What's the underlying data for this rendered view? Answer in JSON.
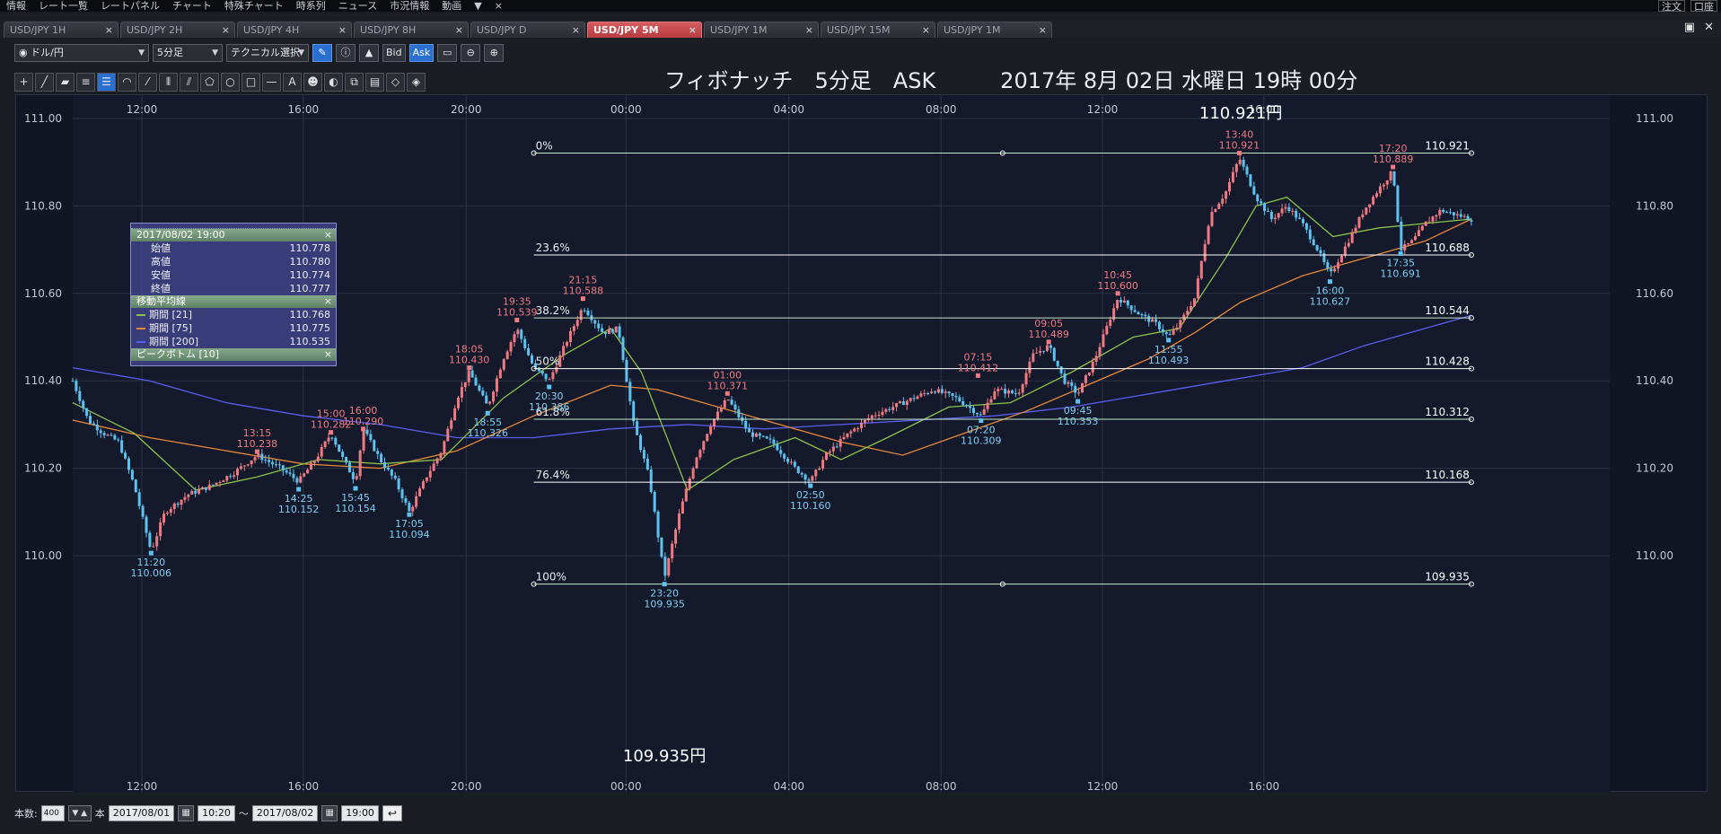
{
  "menu": [
    "情報",
    "レート一覧",
    "レートパネル",
    "チャート",
    "特殊チャート",
    "時系列",
    "ニュース",
    "市況情報",
    "動画",
    "▼",
    "×"
  ],
  "menu_right": [
    "注文",
    "口座"
  ],
  "tabs": [
    {
      "label": "USD/JPY 1H",
      "active": false
    },
    {
      "label": "USD/JPY 2H",
      "active": false
    },
    {
      "label": "USD/JPY 4H",
      "active": false
    },
    {
      "label": "USD/JPY 8H",
      "active": false
    },
    {
      "label": "USD/JPY D",
      "active": false
    },
    {
      "label": "USD/JPY 5M",
      "active": true
    },
    {
      "label": "USD/JPY 1M",
      "active": false
    },
    {
      "label": "USD/JPY 15M",
      "active": false
    },
    {
      "label": "USD/JPY 1M",
      "active": false
    }
  ],
  "toolbar": {
    "pair": "ドル/円",
    "timeframe": "5分足",
    "technical": "テクニカル選択",
    "bid": "Bid",
    "ask": "Ask"
  },
  "chart_title": "フィボナッチ　5分足　ASK　　　2017年 8月 02日 水曜日 19時 00分",
  "info_panel": {
    "date": "2017/08/02 19:00",
    "ohlc": [
      {
        "label": "始値",
        "value": "110.778"
      },
      {
        "label": "高値",
        "value": "110.780"
      },
      {
        "label": "安値",
        "value": "110.774"
      },
      {
        "label": "終値",
        "value": "110.777"
      }
    ],
    "ma_header": "移動平均線",
    "ma": [
      {
        "label": "期間 [21]",
        "value": "110.768",
        "color": "#8bc34a"
      },
      {
        "label": "期間 [75]",
        "value": "110.775",
        "color": "#e8883a"
      },
      {
        "label": "期間 [200]",
        "value": "110.535",
        "color": "#5a5ef0"
      }
    ],
    "peak_header": "ピークボトム [10]",
    "close": "×"
  },
  "bottom": {
    "count_label": "本数:",
    "count_value": "400",
    "unit": "本",
    "from_date": "2017/08/01",
    "from_time": "10:20",
    "tilde": "〜",
    "to_date": "2017/08/02",
    "to_time": "19:00"
  },
  "chart_data": {
    "type": "candlestick",
    "x_ticks": [
      "12:00",
      "16:00",
      "20:00",
      "00:00",
      "04:00",
      "08:00",
      "12:00",
      "16:00"
    ],
    "y_ticks": [
      "111.00",
      "110.80",
      "110.60",
      "110.40",
      "110.20",
      "110.00"
    ],
    "ylim": [
      109.84,
      111.07
    ],
    "fib_levels": [
      {
        "label": "0%",
        "value": 110.921
      },
      {
        "label": "23.6%",
        "value": 110.688
      },
      {
        "label": "38.2%",
        "value": 110.544
      },
      {
        "label": "50%",
        "value": 110.428
      },
      {
        "label": "61.8%",
        "value": 110.312
      },
      {
        "label": "76.4%",
        "value": 110.168
      },
      {
        "label": "100%",
        "value": 109.935
      }
    ],
    "fib_value_labels": [
      "110.921",
      "110.688",
      "110.544",
      "110.428",
      "110.312",
      "110.168",
      "109.935"
    ],
    "high_label": "110.921円",
    "low_label": "109.935円",
    "peaks": [
      {
        "time": "13:15",
        "price": "110.238",
        "x": 0.12,
        "v": 110.238
      },
      {
        "time": "15:00",
        "price": "110.282",
        "x": 0.168,
        "v": 110.282
      },
      {
        "time": "16:00",
        "price": "110.290",
        "x": 0.189,
        "v": 110.29
      },
      {
        "time": "18:05",
        "price": "110.430",
        "x": 0.258,
        "v": 110.43
      },
      {
        "time": "19:35",
        "price": "110.539",
        "x": 0.289,
        "v": 110.539
      },
      {
        "time": "21:15",
        "price": "110.588",
        "x": 0.332,
        "v": 110.588
      },
      {
        "time": "01:00",
        "price": "110.371",
        "x": 0.426,
        "v": 110.371
      },
      {
        "time": "07:15",
        "price": "110.412",
        "x": 0.589,
        "v": 110.412
      },
      {
        "time": "09:05",
        "price": "110.489",
        "x": 0.635,
        "v": 110.489
      },
      {
        "time": "10:45",
        "price": "110.600",
        "x": 0.68,
        "v": 110.6
      },
      {
        "time": "13:40",
        "price": "110.921",
        "x": 0.759,
        "v": 110.921
      },
      {
        "time": "17:20",
        "price": "110.889",
        "x": 0.859,
        "v": 110.889
      }
    ],
    "bottoms": [
      {
        "time": "11:20",
        "price": "110.006",
        "x": 0.051,
        "v": 110.006
      },
      {
        "time": "14:25",
        "price": "110.152",
        "x": 0.147,
        "v": 110.152
      },
      {
        "time": "15:45",
        "price": "110.154",
        "x": 0.184,
        "v": 110.154
      },
      {
        "time": "17:05",
        "price": "110.094",
        "x": 0.219,
        "v": 110.094
      },
      {
        "time": "18:55",
        "price": "110.326",
        "x": 0.27,
        "v": 110.326
      },
      {
        "time": "20:30",
        "price": "110.386",
        "x": 0.31,
        "v": 110.386
      },
      {
        "time": "23:20",
        "price": "109.935",
        "x": 0.385,
        "v": 109.935
      },
      {
        "time": "02:50",
        "price": "110.160",
        "x": 0.48,
        "v": 110.16
      },
      {
        "time": "07:20",
        "price": "110.309",
        "x": 0.591,
        "v": 110.309
      },
      {
        "time": "09:45",
        "price": "110.353",
        "x": 0.654,
        "v": 110.353
      },
      {
        "time": "11:55",
        "price": "110.493",
        "x": 0.713,
        "v": 110.493
      },
      {
        "time": "16:00",
        "price": "110.627",
        "x": 0.818,
        "v": 110.627
      },
      {
        "time": "17:35",
        "price": "110.691",
        "x": 0.864,
        "v": 110.691
      }
    ],
    "path": [
      [
        0.0,
        110.4
      ],
      [
        0.01,
        110.31
      ],
      [
        0.02,
        110.28
      ],
      [
        0.03,
        110.26
      ],
      [
        0.04,
        110.16
      ],
      [
        0.051,
        110.01
      ],
      [
        0.06,
        110.1
      ],
      [
        0.075,
        110.14
      ],
      [
        0.09,
        110.16
      ],
      [
        0.105,
        110.19
      ],
      [
        0.12,
        110.23
      ],
      [
        0.135,
        110.2
      ],
      [
        0.147,
        110.17
      ],
      [
        0.158,
        110.22
      ],
      [
        0.168,
        110.28
      ],
      [
        0.176,
        110.22
      ],
      [
        0.184,
        110.17
      ],
      [
        0.189,
        110.29
      ],
      [
        0.2,
        110.22
      ],
      [
        0.21,
        110.17
      ],
      [
        0.219,
        110.1
      ],
      [
        0.23,
        110.18
      ],
      [
        0.24,
        110.24
      ],
      [
        0.25,
        110.36
      ],
      [
        0.258,
        110.42
      ],
      [
        0.264,
        110.38
      ],
      [
        0.27,
        110.34
      ],
      [
        0.28,
        110.45
      ],
      [
        0.289,
        110.52
      ],
      [
        0.3,
        110.43
      ],
      [
        0.31,
        110.4
      ],
      [
        0.32,
        110.48
      ],
      [
        0.332,
        110.57
      ],
      [
        0.345,
        110.51
      ],
      [
        0.355,
        110.52
      ],
      [
        0.365,
        110.3
      ],
      [
        0.375,
        110.18
      ],
      [
        0.385,
        109.95
      ],
      [
        0.395,
        110.1
      ],
      [
        0.405,
        110.22
      ],
      [
        0.415,
        110.3
      ],
      [
        0.426,
        110.36
      ],
      [
        0.44,
        110.28
      ],
      [
        0.455,
        110.26
      ],
      [
        0.47,
        110.2
      ],
      [
        0.48,
        110.17
      ],
      [
        0.49,
        110.23
      ],
      [
        0.505,
        110.28
      ],
      [
        0.52,
        110.32
      ],
      [
        0.54,
        110.35
      ],
      [
        0.56,
        110.38
      ],
      [
        0.575,
        110.36
      ],
      [
        0.591,
        110.32
      ],
      [
        0.6,
        110.38
      ],
      [
        0.615,
        110.37
      ],
      [
        0.625,
        110.46
      ],
      [
        0.635,
        110.48
      ],
      [
        0.645,
        110.4
      ],
      [
        0.654,
        110.37
      ],
      [
        0.665,
        110.45
      ],
      [
        0.68,
        110.59
      ],
      [
        0.695,
        110.55
      ],
      [
        0.705,
        110.53
      ],
      [
        0.713,
        110.5
      ],
      [
        0.72,
        110.53
      ],
      [
        0.73,
        110.59
      ],
      [
        0.74,
        110.78
      ],
      [
        0.75,
        110.83
      ],
      [
        0.759,
        110.91
      ],
      [
        0.77,
        110.82
      ],
      [
        0.78,
        110.77
      ],
      [
        0.79,
        110.8
      ],
      [
        0.8,
        110.76
      ],
      [
        0.81,
        110.7
      ],
      [
        0.818,
        110.64
      ],
      [
        0.83,
        110.72
      ],
      [
        0.84,
        110.79
      ],
      [
        0.85,
        110.84
      ],
      [
        0.859,
        110.88
      ],
      [
        0.864,
        110.7
      ],
      [
        0.872,
        110.72
      ],
      [
        0.88,
        110.76
      ],
      [
        0.89,
        110.79
      ],
      [
        0.9,
        110.78
      ],
      [
        0.91,
        110.77
      ]
    ],
    "ma21": [
      [
        0.0,
        110.35
      ],
      [
        0.04,
        110.28
      ],
      [
        0.08,
        110.15
      ],
      [
        0.12,
        110.18
      ],
      [
        0.16,
        110.22
      ],
      [
        0.2,
        110.21
      ],
      [
        0.24,
        110.22
      ],
      [
        0.28,
        110.36
      ],
      [
        0.32,
        110.46
      ],
      [
        0.35,
        110.52
      ],
      [
        0.37,
        110.42
      ],
      [
        0.4,
        110.15
      ],
      [
        0.43,
        110.22
      ],
      [
        0.47,
        110.27
      ],
      [
        0.5,
        110.22
      ],
      [
        0.53,
        110.27
      ],
      [
        0.57,
        110.34
      ],
      [
        0.61,
        110.35
      ],
      [
        0.65,
        110.42
      ],
      [
        0.69,
        110.5
      ],
      [
        0.72,
        110.52
      ],
      [
        0.75,
        110.68
      ],
      [
        0.77,
        110.8
      ],
      [
        0.79,
        110.82
      ],
      [
        0.82,
        110.73
      ],
      [
        0.85,
        110.75
      ],
      [
        0.88,
        110.76
      ],
      [
        0.91,
        110.77
      ]
    ],
    "ma75": [
      [
        0.0,
        110.31
      ],
      [
        0.05,
        110.27
      ],
      [
        0.1,
        110.24
      ],
      [
        0.15,
        110.21
      ],
      [
        0.2,
        110.2
      ],
      [
        0.25,
        110.24
      ],
      [
        0.3,
        110.32
      ],
      [
        0.35,
        110.39
      ],
      [
        0.38,
        110.38
      ],
      [
        0.42,
        110.34
      ],
      [
        0.46,
        110.3
      ],
      [
        0.5,
        110.26
      ],
      [
        0.54,
        110.23
      ],
      [
        0.58,
        110.28
      ],
      [
        0.62,
        110.33
      ],
      [
        0.66,
        110.39
      ],
      [
        0.7,
        110.45
      ],
      [
        0.73,
        110.51
      ],
      [
        0.76,
        110.58
      ],
      [
        0.8,
        110.64
      ],
      [
        0.84,
        110.68
      ],
      [
        0.88,
        110.72
      ],
      [
        0.91,
        110.77
      ]
    ],
    "ma200": [
      [
        0.0,
        110.43
      ],
      [
        0.05,
        110.4
      ],
      [
        0.1,
        110.35
      ],
      [
        0.15,
        110.32
      ],
      [
        0.2,
        110.3
      ],
      [
        0.25,
        110.27
      ],
      [
        0.3,
        110.27
      ],
      [
        0.35,
        110.29
      ],
      [
        0.4,
        110.3
      ],
      [
        0.45,
        110.29
      ],
      [
        0.5,
        110.3
      ],
      [
        0.55,
        110.31
      ],
      [
        0.6,
        110.32
      ],
      [
        0.65,
        110.34
      ],
      [
        0.7,
        110.37
      ],
      [
        0.75,
        110.4
      ],
      [
        0.8,
        110.43
      ],
      [
        0.84,
        110.48
      ],
      [
        0.88,
        110.52
      ],
      [
        0.91,
        110.55
      ]
    ]
  }
}
